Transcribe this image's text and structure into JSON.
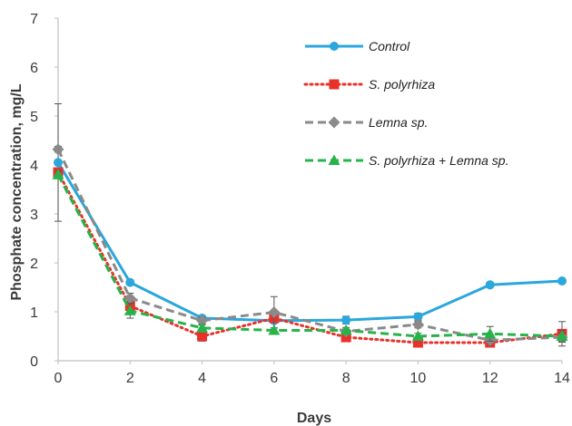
{
  "chart_data": {
    "type": "line",
    "title": "",
    "xlabel": "Days",
    "ylabel": "Phosphate concentration, mg/L",
    "x": [
      0,
      2,
      4,
      6,
      8,
      10,
      12,
      14
    ],
    "xticks": [
      "0",
      "2",
      "4",
      "6",
      "8",
      "10",
      "12",
      "14"
    ],
    "yticks": [
      "0",
      "1",
      "2",
      "3",
      "4",
      "5",
      "6",
      "7"
    ],
    "xlim": [
      0,
      14
    ],
    "ylim": [
      0,
      7
    ],
    "grid": false,
    "legend_position": "top-right",
    "series": [
      {
        "name": "Control",
        "color": "#2aa7dc",
        "line_style": "solid",
        "marker": "circle",
        "values": [
          4.05,
          1.6,
          0.87,
          0.82,
          0.83,
          0.9,
          1.55,
          1.63
        ],
        "error": [
          1.2,
          0.05,
          0.05,
          0.05,
          0.08,
          0.07,
          0.05,
          0.04
        ]
      },
      {
        "name": "S. polyrhiza",
        "color": "#e8312a",
        "line_style": "dotted",
        "marker": "square",
        "values": [
          3.85,
          1.12,
          0.5,
          0.87,
          0.48,
          0.37,
          0.37,
          0.55
        ],
        "error": [
          0.08,
          0.08,
          0.1,
          0.08,
          0.06,
          0.05,
          0.06,
          0.25
        ]
      },
      {
        "name": "Lemna sp.",
        "color": "#8a8a8a",
        "line_style": "dashed",
        "marker": "diamond",
        "values": [
          4.32,
          1.28,
          0.82,
          0.99,
          0.6,
          0.74,
          0.42,
          0.48
        ],
        "error": [
          0.06,
          0.1,
          0.07,
          0.32,
          0.05,
          0.07,
          0.06,
          0.08
        ]
      },
      {
        "name": "S. polyrhiza + Lemna sp.",
        "color": "#27b34a",
        "line_style": "dashed",
        "marker": "triangle",
        "values": [
          3.8,
          1.02,
          0.67,
          0.62,
          0.62,
          0.5,
          0.55,
          0.5
        ],
        "error": [
          0.08,
          0.15,
          0.06,
          0.05,
          0.06,
          0.06,
          0.15,
          0.12
        ]
      }
    ]
  }
}
